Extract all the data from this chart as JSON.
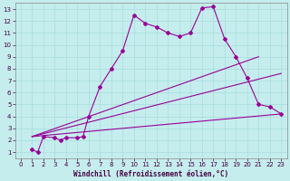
{
  "title": "",
  "xlabel": "Windchill (Refroidissement éolien,°C)",
  "bg_color": "#c5eded",
  "grid_color": "#a8dddd",
  "line_color": "#990099",
  "xlim": [
    -0.5,
    23.5
  ],
  "ylim": [
    0.5,
    13.5
  ],
  "xticks": [
    0,
    1,
    2,
    3,
    4,
    5,
    6,
    7,
    8,
    9,
    10,
    11,
    12,
    13,
    14,
    15,
    16,
    17,
    18,
    19,
    20,
    21,
    22,
    23
  ],
  "yticks": [
    1,
    2,
    3,
    4,
    5,
    6,
    7,
    8,
    9,
    10,
    11,
    12,
    13
  ],
  "line1_x": [
    1,
    1.5,
    2,
    3,
    3.5,
    4,
    5,
    5.5,
    6,
    7,
    8,
    9,
    10,
    11,
    12,
    13,
    14,
    15,
    16,
    17,
    18,
    19,
    20,
    21,
    22,
    23
  ],
  "line1_y": [
    1.2,
    1.0,
    2.3,
    2.2,
    2.0,
    2.2,
    2.2,
    2.3,
    4.0,
    6.5,
    8.0,
    9.5,
    12.5,
    11.8,
    11.5,
    11.0,
    10.7,
    11.0,
    13.1,
    13.2,
    10.5,
    9.0,
    7.2,
    5.0,
    4.8,
    4.2
  ],
  "line2_x": [
    1,
    21
  ],
  "line2_y": [
    2.3,
    9.0
  ],
  "line3_x": [
    1,
    23
  ],
  "line3_y": [
    2.3,
    7.6
  ],
  "line4_x": [
    1,
    23
  ],
  "line4_y": [
    2.3,
    4.2
  ],
  "marker": "D",
  "markersize": 2,
  "linewidth": 0.8,
  "fontsize_tick": 5,
  "fontsize_label": 5.5
}
